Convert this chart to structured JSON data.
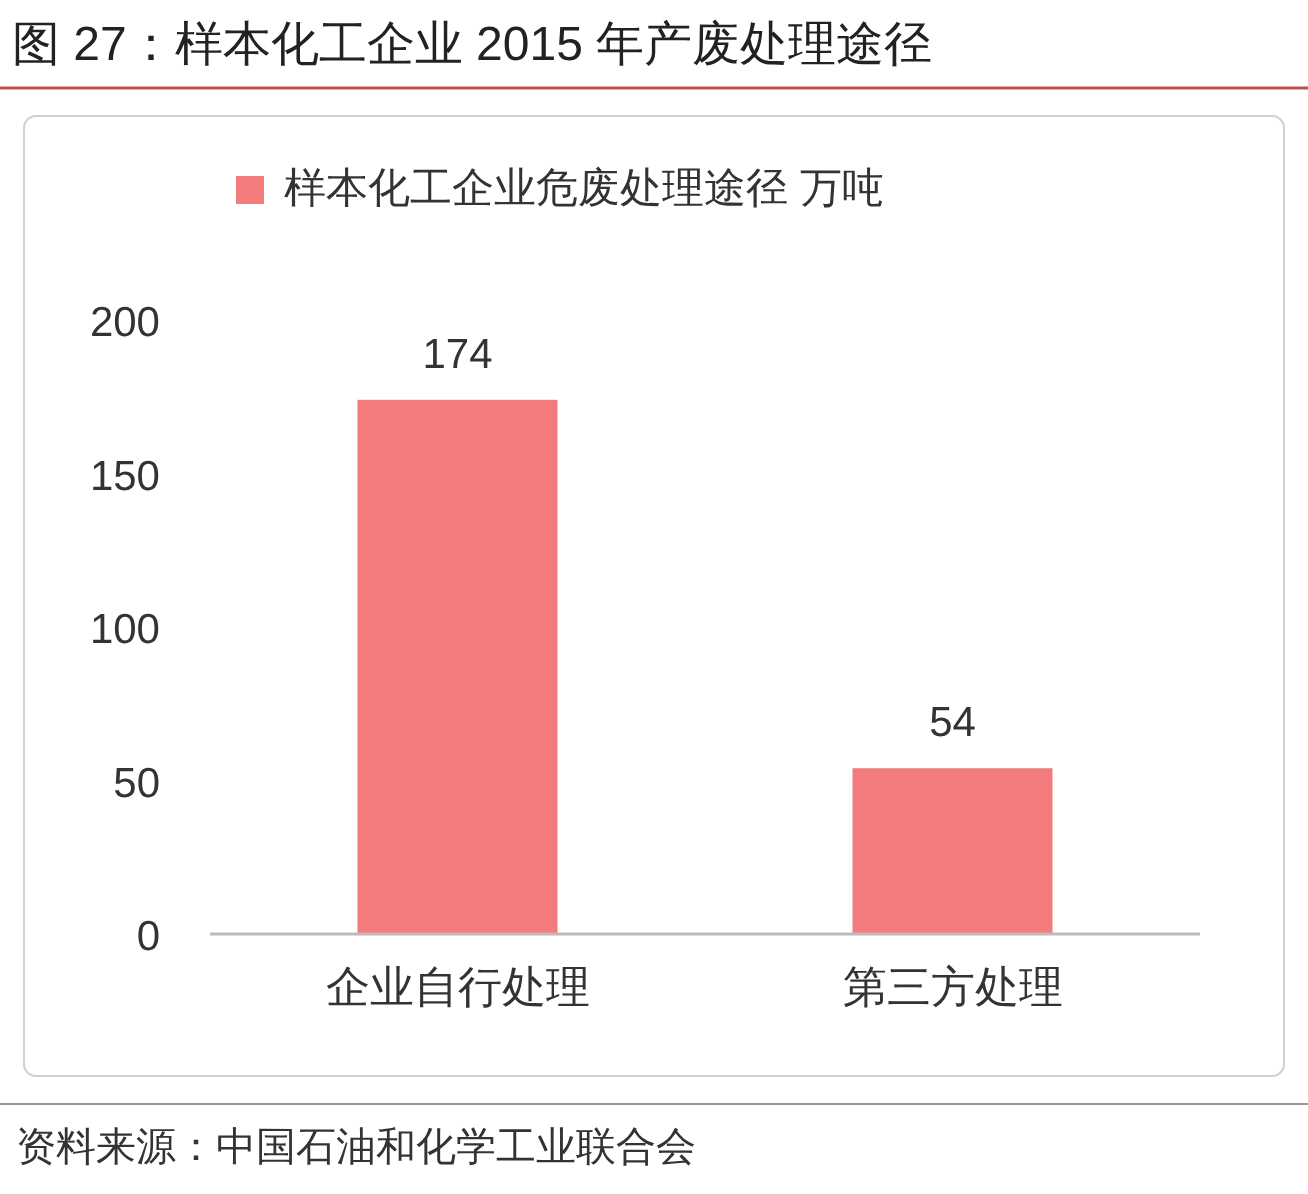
{
  "chart_data": {
    "type": "bar",
    "title": "图 27：样本化工企业 2015 年产废处理途径",
    "categories": [
      "企业自行处理",
      "第三方处理"
    ],
    "series": [
      {
        "name": "样本化工企业危废处理途径 万吨",
        "color": "#f47b7b",
        "values": [
          174,
          54
        ]
      }
    ],
    "ylim": [
      0,
      200
    ],
    "yticks": [
      0,
      50,
      100,
      150,
      200
    ],
    "data_labels": true,
    "legend": "top left",
    "grid": false,
    "annotations": [
      "资料来源：中国石油和化学工业联合会"
    ]
  }
}
